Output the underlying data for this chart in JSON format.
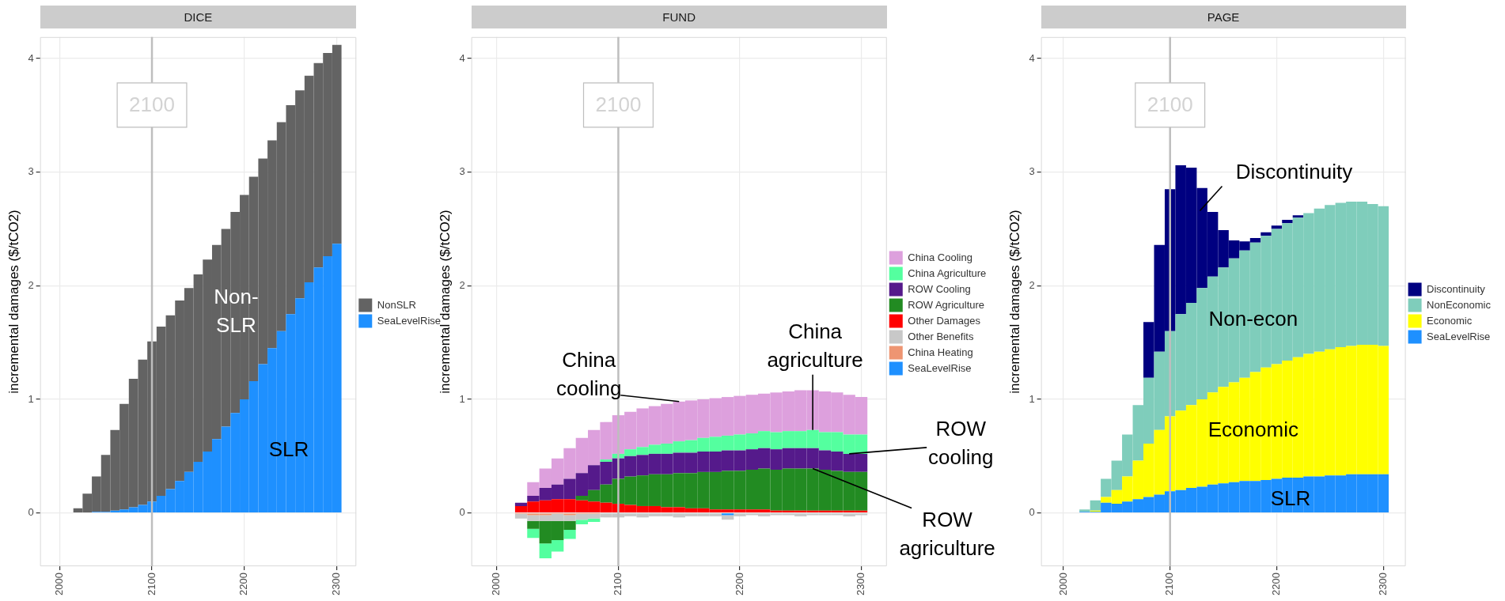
{
  "chart_data": [
    {
      "type": "bar",
      "title": "DICE",
      "ylabel": "incremental damages ($/tCO2)",
      "stacked": true,
      "legend": "right",
      "grid": true,
      "x": [
        2020,
        2030,
        2040,
        2050,
        2060,
        2070,
        2080,
        2090,
        2100,
        2110,
        2120,
        2130,
        2140,
        2150,
        2160,
        2170,
        2180,
        2190,
        2200,
        2210,
        2220,
        2230,
        2240,
        2250,
        2260,
        2270,
        2280,
        2290,
        2300
      ],
      "series": [
        {
          "name": "SeaLevelRise",
          "color": "#1e90ff",
          "values": [
            0,
            0,
            0.01,
            0.01,
            0.02,
            0.03,
            0.05,
            0.07,
            0.1,
            0.15,
            0.21,
            0.28,
            0.36,
            0.45,
            0.54,
            0.65,
            0.76,
            0.88,
            1.0,
            1.16,
            1.31,
            1.45,
            1.6,
            1.75,
            1.89,
            2.03,
            2.16,
            2.26,
            2.37
          ]
        },
        {
          "name": "NonSLR",
          "color": "#636363",
          "values": [
            0.04,
            0.17,
            0.31,
            0.5,
            0.71,
            0.93,
            1.13,
            1.28,
            1.41,
            1.49,
            1.53,
            1.59,
            1.62,
            1.65,
            1.69,
            1.71,
            1.74,
            1.77,
            1.8,
            1.8,
            1.81,
            1.83,
            1.84,
            1.84,
            1.83,
            1.82,
            1.8,
            1.79,
            1.75
          ]
        }
      ],
      "xlim": [
        1979,
        2321
      ],
      "ylim": [
        -0.47,
        4.19
      ],
      "xticks": [
        2000,
        2100,
        2200,
        2300
      ],
      "yticks": [
        0,
        1,
        2,
        3,
        4
      ],
      "ref_lines": [
        {
          "axis": "x",
          "value": 2100,
          "label": "2100",
          "color": "#bebebe"
        }
      ],
      "annotations": [
        {
          "text": "Non-\nSLR",
          "x": 2191,
          "y": 1.77
        },
        {
          "text": "SLR",
          "x": 2248,
          "y": 0.55
        }
      ]
    },
    {
      "type": "bar",
      "title": "FUND",
      "ylabel": "incremental damages ($/tCO2)",
      "stacked": true,
      "legend": "right",
      "grid": true,
      "x": [
        2020,
        2030,
        2040,
        2050,
        2060,
        2070,
        2080,
        2090,
        2100,
        2110,
        2120,
        2130,
        2140,
        2150,
        2160,
        2170,
        2180,
        2190,
        2200,
        2210,
        2220,
        2230,
        2240,
        2250,
        2260,
        2270,
        2280,
        2290,
        2300
      ],
      "series": [
        {
          "name": "SeaLevelRise",
          "color": "#1e90ff",
          "values": [
            0,
            0,
            0,
            0,
            0,
            0,
            0,
            0,
            0,
            0,
            0,
            0,
            0,
            0,
            0,
            0,
            0,
            -0.02,
            0,
            0,
            0,
            0,
            0,
            0,
            0,
            0,
            0,
            0,
            0
          ]
        },
        {
          "name": "China Heating",
          "color": "#ee9572",
          "values": [
            -0.01,
            -0.02,
            -0.02,
            -0.01,
            -0.02,
            -0.01,
            -0.01,
            0,
            0,
            0,
            0,
            0,
            0,
            0,
            0,
            0,
            0,
            0,
            0,
            0,
            0,
            0,
            0,
            0,
            0,
            0,
            0,
            0,
            0
          ]
        },
        {
          "name": "Other Benefits",
          "color": "#c8c8c8",
          "values": [
            -0.04,
            -0.05,
            -0.05,
            -0.06,
            -0.05,
            -0.05,
            -0.04,
            -0.04,
            -0.04,
            -0.03,
            -0.04,
            -0.03,
            -0.03,
            -0.04,
            -0.03,
            -0.03,
            -0.03,
            -0.04,
            -0.03,
            -0.02,
            -0.03,
            -0.02,
            -0.02,
            -0.03,
            -0.02,
            -0.02,
            -0.02,
            -0.03,
            -0.02
          ]
        },
        {
          "name": "Other Damages",
          "color": "#ff0000",
          "values": [
            0.06,
            0.1,
            0.11,
            0.12,
            0.12,
            0.11,
            0.1,
            0.09,
            0.08,
            0.07,
            0.06,
            0.06,
            0.05,
            0.05,
            0.04,
            0.04,
            0.03,
            0.03,
            0.03,
            0.03,
            0.03,
            0.02,
            0.02,
            0.02,
            0.02,
            0.02,
            0.02,
            0.02,
            0.02
          ]
        },
        {
          "name": "ROW Agriculture",
          "color": "#228b22",
          "values": [
            0,
            -0.07,
            -0.2,
            -0.17,
            -0.08,
            0.04,
            0.1,
            0.16,
            0.22,
            0.25,
            0.27,
            0.28,
            0.29,
            0.3,
            0.31,
            0.32,
            0.33,
            0.34,
            0.34,
            0.35,
            0.36,
            0.36,
            0.37,
            0.37,
            0.37,
            0.36,
            0.35,
            0.34,
            0.34
          ]
        },
        {
          "name": "ROW Cooling",
          "color": "#551a8b",
          "values": [
            0.03,
            0.05,
            0.11,
            0.13,
            0.18,
            0.2,
            0.22,
            0.2,
            0.18,
            0.18,
            0.18,
            0.18,
            0.18,
            0.18,
            0.18,
            0.18,
            0.18,
            0.18,
            0.18,
            0.18,
            0.18,
            0.18,
            0.18,
            0.18,
            0.18,
            0.17,
            0.17,
            0.16,
            0.16
          ]
        },
        {
          "name": "China Agriculture",
          "color": "#54ff9f",
          "values": [
            0,
            -0.08,
            -0.13,
            -0.1,
            -0.08,
            -0.04,
            -0.03,
            0.02,
            0.04,
            0.06,
            0.07,
            0.08,
            0.09,
            0.1,
            0.11,
            0.12,
            0.13,
            0.13,
            0.14,
            0.14,
            0.15,
            0.15,
            0.15,
            0.15,
            0.16,
            0.16,
            0.17,
            0.17,
            0.17
          ]
        },
        {
          "name": "China Cooling",
          "color": "#dda0dd",
          "values": [
            0,
            0.12,
            0.17,
            0.23,
            0.27,
            0.31,
            0.31,
            0.33,
            0.34,
            0.33,
            0.34,
            0.34,
            0.35,
            0.35,
            0.35,
            0.34,
            0.34,
            0.34,
            0.34,
            0.34,
            0.33,
            0.35,
            0.35,
            0.36,
            0.35,
            0.36,
            0.35,
            0.35,
            0.33
          ]
        }
      ],
      "xlim": [
        1979,
        2321
      ],
      "ylim": [
        -0.47,
        4.19
      ],
      "xticks": [
        2000,
        2100,
        2200,
        2300
      ],
      "yticks": [
        0,
        1,
        2,
        3,
        4
      ],
      "ref_lines": [
        {
          "axis": "x",
          "value": 2100,
          "label": "2100",
          "color": "#bebebe"
        }
      ],
      "annotations": [
        {
          "text": "China\ncooling",
          "x": 2150,
          "y": 0.98
        },
        {
          "text": "China\nagriculture",
          "x": 2260,
          "y": 0.73
        },
        {
          "text": "ROW\ncooling",
          "x": 2290,
          "y": 0.52
        },
        {
          "text": "ROW\nagriculture",
          "x": 2260,
          "y": 0.39
        }
      ]
    },
    {
      "type": "bar",
      "title": "PAGE",
      "ylabel": "incremental damages ($/tCO2)",
      "stacked": true,
      "legend": "right",
      "grid": true,
      "x": [
        2020,
        2030,
        2040,
        2050,
        2060,
        2070,
        2080,
        2090,
        2100,
        2110,
        2120,
        2130,
        2140,
        2150,
        2160,
        2170,
        2180,
        2190,
        2200,
        2210,
        2220,
        2230,
        2240,
        2250,
        2260,
        2270,
        2280,
        2290,
        2300
      ],
      "series": [
        {
          "name": "SeaLevelRise",
          "color": "#1e90ff",
          "values": [
            0.01,
            0.01,
            0.09,
            0.08,
            0.1,
            0.12,
            0.14,
            0.16,
            0.19,
            0.2,
            0.22,
            0.23,
            0.25,
            0.26,
            0.27,
            0.28,
            0.28,
            0.29,
            0.3,
            0.31,
            0.31,
            0.32,
            0.32,
            0.33,
            0.33,
            0.34,
            0.34,
            0.34,
            0.34
          ]
        },
        {
          "name": "Economic",
          "color": "#ffff00",
          "values": [
            0,
            0.01,
            0.05,
            0.12,
            0.22,
            0.34,
            0.47,
            0.57,
            0.66,
            0.7,
            0.73,
            0.77,
            0.81,
            0.85,
            0.88,
            0.91,
            0.96,
            0.99,
            1.01,
            1.03,
            1.06,
            1.08,
            1.1,
            1.11,
            1.13,
            1.13,
            1.14,
            1.14,
            1.13
          ]
        },
        {
          "name": "NonEconomic",
          "color": "#7fcdbb",
          "values": [
            0.02,
            0.09,
            0.16,
            0.26,
            0.37,
            0.49,
            0.58,
            0.69,
            0.75,
            0.85,
            0.9,
            0.98,
            1.02,
            1.05,
            1.09,
            1.12,
            1.14,
            1.16,
            1.19,
            1.21,
            1.23,
            1.24,
            1.26,
            1.27,
            1.27,
            1.27,
            1.26,
            1.24,
            1.23
          ]
        },
        {
          "name": "Discontinuity",
          "color": "#000080",
          "values": [
            0,
            0,
            0,
            0,
            0,
            0,
            0.49,
            0.94,
            1.25,
            1.31,
            1.19,
            0.88,
            0.57,
            0.33,
            0.16,
            0.08,
            0.04,
            0.03,
            0.03,
            0.03,
            0.02,
            0,
            0,
            0,
            0,
            0,
            0,
            0,
            0
          ]
        }
      ],
      "xlim": [
        1979,
        2321
      ],
      "ylim": [
        -0.47,
        4.19
      ],
      "xticks": [
        2000,
        2100,
        2200,
        2300
      ],
      "yticks": [
        0,
        1,
        2,
        3,
        4
      ],
      "ref_lines": [
        {
          "axis": "x",
          "value": 2100,
          "label": "2100",
          "color": "#bebebe"
        }
      ],
      "annotations": [
        {
          "text": "Discontinuity",
          "x": 2128,
          "y": 2.66
        },
        {
          "text": "Non-econ",
          "x": 2178,
          "y": 1.7
        },
        {
          "text": "Economic",
          "x": 2178,
          "y": 0.72
        },
        {
          "text": "SLR",
          "x": 2213,
          "y": 0.12
        }
      ]
    }
  ]
}
